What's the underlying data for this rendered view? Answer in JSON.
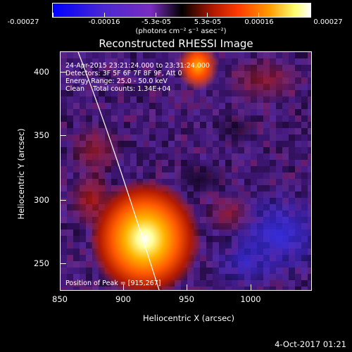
{
  "colorbar": {
    "labels": [
      "-0.00027",
      "-0.00016",
      "-5.3e-05",
      "5.3e-05",
      "0.00016",
      "0.00027"
    ],
    "unit": "(photons cm⁻² s⁻¹ asec⁻²)"
  },
  "title": "Reconstructed RHESSI Image",
  "annotations": {
    "time": "24-Apr-2015 23:21:24.000 to 23:31:24.000",
    "detectors": "Detectors: 3F 5F 6F 7F 8F 9F, Att 0",
    "energy": "Energy Range: 25.0 - 50.0 keV",
    "clean": "Clean    Total counts: 1.34E+04",
    "peak": "Position of Peak = [915,267]"
  },
  "axes": {
    "xlabel": "Heliocentric X (arcsec)",
    "ylabel": "Heliocentric Y (arcsec)",
    "xticks": [
      "850",
      "900",
      "950",
      "1000"
    ],
    "yticks": [
      "400",
      "350",
      "300",
      "250"
    ]
  },
  "footer": {
    "date": "4-Oct-2017 01:21"
  },
  "colors": {
    "background": "#000000",
    "text": "#ffffff",
    "limb": "#ffffff"
  }
}
